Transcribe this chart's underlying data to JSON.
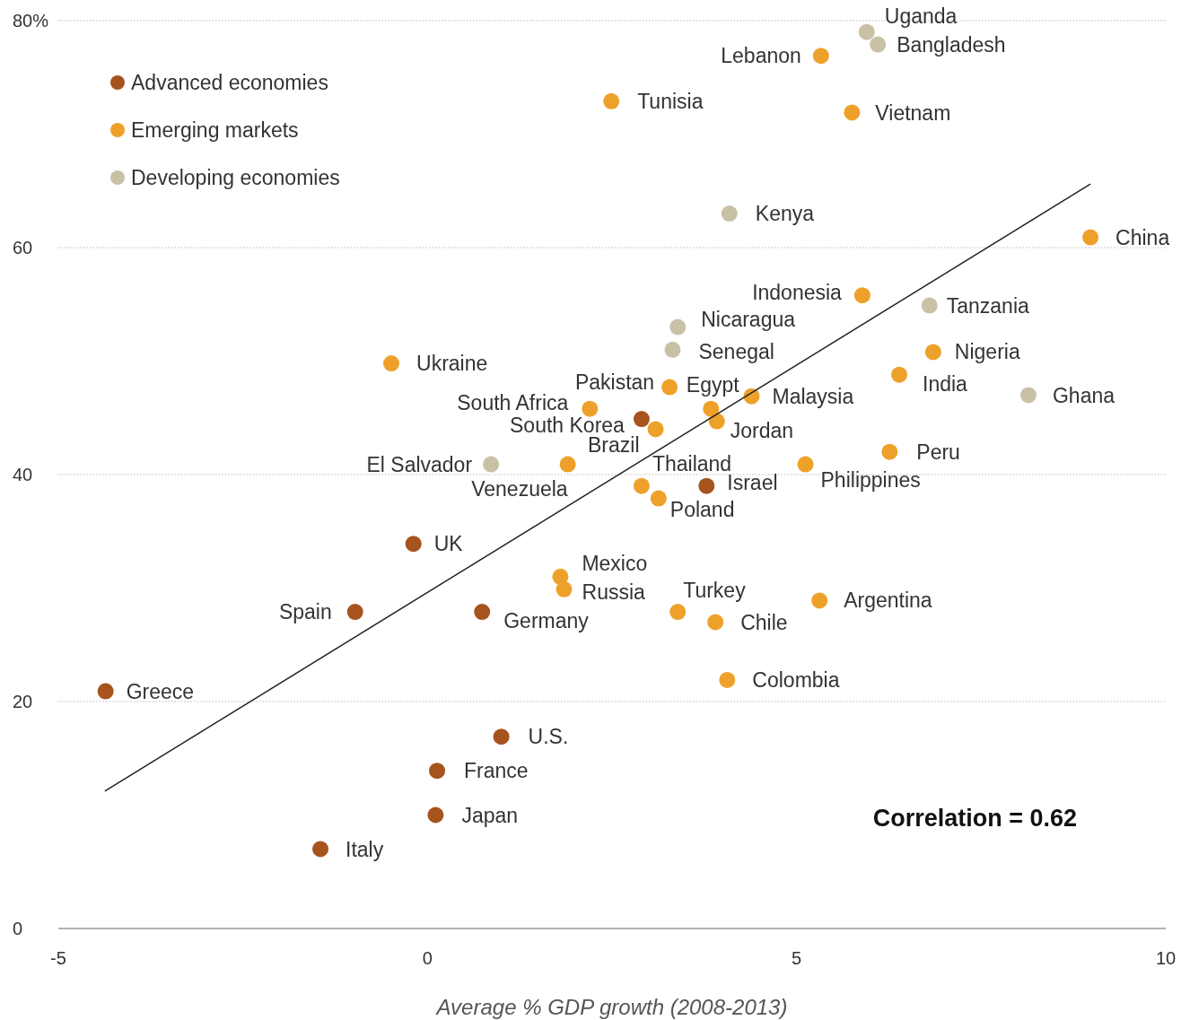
{
  "chart_data": {
    "type": "scatter",
    "xlabel": "Average % GDP growth (2008-2013)",
    "xlim": [
      -5,
      10
    ],
    "xticks": [
      -5,
      0,
      5,
      10
    ],
    "ylim": [
      0,
      80
    ],
    "yticks": [
      0,
      20,
      40,
      60,
      {
        "value": 80,
        "label": "80%"
      }
    ],
    "grid": "y",
    "legend": "top left",
    "series": [
      {
        "name": "Advanced economies",
        "color": "#a6531e",
        "marker": "circle",
        "x": [
          -4.36,
          -0.98,
          -0.19,
          0.74,
          2.9,
          3.78,
          1.0,
          0.13,
          0.11,
          -1.45
        ],
        "values": [
          20.9,
          27.9,
          33.9,
          27.9,
          44.9,
          39.0,
          16.9,
          13.9,
          10.0,
          7.0
        ]
      },
      {
        "name": "Emerging markets",
        "color": "#eea12a",
        "marker": "circle",
        "x": [
          5.33,
          2.49,
          5.75,
          8.98,
          5.89,
          6.85,
          6.39,
          -0.49,
          3.28,
          3.84,
          4.39,
          2.2,
          3.92,
          3.09,
          1.9,
          2.9,
          3.13,
          5.12,
          6.26,
          1.8,
          1.85,
          3.39,
          3.9,
          5.31,
          4.06
        ],
        "values": [
          76.9,
          72.9,
          71.9,
          60.9,
          55.8,
          50.8,
          48.8,
          49.8,
          47.7,
          45.8,
          46.9,
          45.8,
          44.7,
          44.0,
          40.9,
          39.0,
          37.9,
          40.9,
          42.0,
          31.0,
          29.9,
          27.9,
          27.0,
          28.9,
          21.9
        ]
      },
      {
        "name": "Developing economies",
        "color": "#c9c1a6",
        "marker": "circle",
        "x": [
          5.95,
          6.1,
          4.09,
          6.8,
          3.39,
          3.32,
          8.14,
          0.86
        ],
        "values": [
          79.0,
          77.9,
          63.0,
          54.9,
          53.0,
          51.0,
          47.0,
          40.9
        ]
      },
      {
        "type": "line",
        "color": "#222222",
        "x": [
          -4.37,
          8.98
        ],
        "values": [
          12.1,
          65.6
        ]
      }
    ],
    "annotations": [
      "Correlation = 0.62",
      {
        "text": "Greece",
        "x": -4.36,
        "y": 20.9
      },
      {
        "text": "Spain",
        "x": -0.98,
        "y": 27.9
      },
      {
        "text": "UK",
        "x": -0.19,
        "y": 33.9
      },
      {
        "text": "Germany",
        "x": 0.74,
        "y": 27.9
      },
      {
        "text": "South Korea",
        "x": 2.9,
        "y": 44.9
      },
      {
        "text": "Israel",
        "x": 3.78,
        "y": 39.0
      },
      {
        "text": "U.S.",
        "x": 1.0,
        "y": 16.9
      },
      {
        "text": "France",
        "x": 0.13,
        "y": 13.9
      },
      {
        "text": "Japan",
        "x": 0.11,
        "y": 10.0
      },
      {
        "text": "Italy",
        "x": -1.45,
        "y": 7.0
      },
      {
        "text": "Lebanon",
        "x": 5.33,
        "y": 76.9
      },
      {
        "text": "Tunisia",
        "x": 2.49,
        "y": 72.9
      },
      {
        "text": "Vietnam",
        "x": 5.75,
        "y": 71.9
      },
      {
        "text": "China",
        "x": 8.98,
        "y": 60.9
      },
      {
        "text": "Indonesia",
        "x": 5.89,
        "y": 55.8
      },
      {
        "text": "Nigeria",
        "x": 6.85,
        "y": 50.8
      },
      {
        "text": "India",
        "x": 6.39,
        "y": 48.8
      },
      {
        "text": "Ukraine",
        "x": -0.49,
        "y": 49.8
      },
      {
        "text": "Pakistan",
        "x": 3.28,
        "y": 47.7
      },
      {
        "text": "Egypt",
        "x": 3.84,
        "y": 45.8
      },
      {
        "text": "Malaysia",
        "x": 4.39,
        "y": 46.9
      },
      {
        "text": "South Africa",
        "x": 2.2,
        "y": 45.8
      },
      {
        "text": "Jordan",
        "x": 3.92,
        "y": 44.7
      },
      {
        "text": "Brazil",
        "x": 3.09,
        "y": 44.0
      },
      {
        "text": "Venezuela",
        "x": 1.9,
        "y": 40.9
      },
      {
        "text": "Thailand",
        "x": 2.9,
        "y": 39.0
      },
      {
        "text": "Poland",
        "x": 3.13,
        "y": 37.9
      },
      {
        "text": "Philippines",
        "x": 5.12,
        "y": 40.9
      },
      {
        "text": "Peru",
        "x": 6.26,
        "y": 42.0
      },
      {
        "text": "Mexico",
        "x": 1.8,
        "y": 31.0
      },
      {
        "text": "Russia",
        "x": 1.85,
        "y": 29.9
      },
      {
        "text": "Turkey",
        "x": 3.39,
        "y": 27.9
      },
      {
        "text": "Chile",
        "x": 3.9,
        "y": 27.0
      },
      {
        "text": "Argentina",
        "x": 5.31,
        "y": 28.9
      },
      {
        "text": "Colombia",
        "x": 4.06,
        "y": 21.9
      },
      {
        "text": "Uganda",
        "x": 5.95,
        "y": 79.0
      },
      {
        "text": "Bangladesh",
        "x": 6.1,
        "y": 77.9
      },
      {
        "text": "Kenya",
        "x": 4.09,
        "y": 63.0
      },
      {
        "text": "Tanzania",
        "x": 6.8,
        "y": 54.9
      },
      {
        "text": "Nicaragua",
        "x": 3.39,
        "y": 53.0
      },
      {
        "text": "Senegal",
        "x": 3.32,
        "y": 51.0
      },
      {
        "text": "Ghana",
        "x": 8.14,
        "y": 47.0
      },
      {
        "text": "El Salvador",
        "x": 0.86,
        "y": 40.9
      }
    ]
  }
}
